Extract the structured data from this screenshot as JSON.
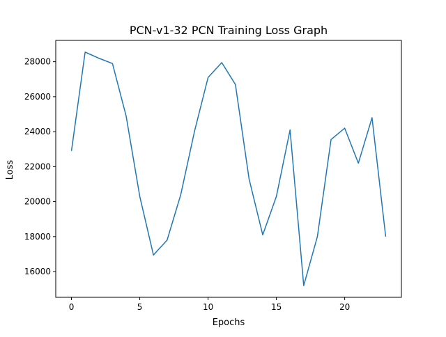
{
  "chart_data": {
    "type": "line",
    "title": "PCN-v1-32 PCN Training Loss Graph",
    "xlabel": "Epochs",
    "ylabel": "Loss",
    "xlim": [
      -1.15,
      24.15
    ],
    "ylim": [
      14530,
      29220
    ],
    "x_ticks": [
      0,
      5,
      10,
      15,
      20
    ],
    "y_ticks": [
      16000,
      18000,
      20000,
      22000,
      24000,
      26000,
      28000
    ],
    "grid": false,
    "legend": "none",
    "series": [
      {
        "color": "#1f77b4",
        "x": [
          0,
          1,
          2,
          3,
          4,
          5,
          6,
          7,
          8,
          9,
          10,
          11,
          12,
          13,
          14,
          15,
          16,
          17,
          18,
          19,
          20,
          21,
          22,
          23
        ],
        "values": [
          22900,
          28550,
          28200,
          27900,
          24900,
          20300,
          16950,
          17800,
          20400,
          24000,
          27100,
          27950,
          26700,
          21300,
          18100,
          20300,
          24100,
          15200,
          18000,
          23550,
          24200,
          22200,
          24800,
          18000
        ]
      }
    ]
  }
}
